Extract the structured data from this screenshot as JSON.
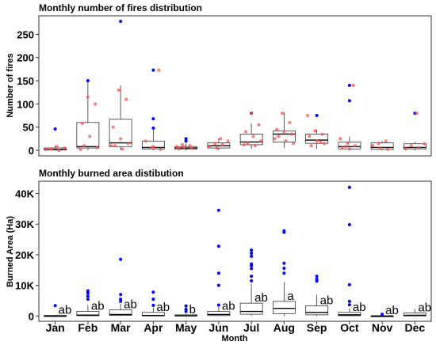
{
  "colors": {
    "box": "#333333",
    "frame": "#333333",
    "outlier": "#0000ff",
    "jitter": "#ff4d4d",
    "background": "#ffffff"
  },
  "chart_data": [
    {
      "type": "box",
      "title": "Monthly number of fires distribution",
      "ylabel": "Number of fires",
      "xlabel": "",
      "ylim": [
        -12,
        290
      ],
      "yticks": [
        0,
        50,
        100,
        150,
        200,
        250
      ],
      "ytick_labels": [
        "0",
        "50",
        "100",
        "150",
        "200",
        "250"
      ],
      "grid": false,
      "categories": [
        "Jan",
        "Feb",
        "Mar",
        "Apr",
        "May",
        "Jun",
        "Jul",
        "Aug",
        "Sep",
        "Oct",
        "Nov",
        "Dec"
      ],
      "boxes": [
        {
          "min": 0,
          "q1": 1,
          "median": 2,
          "q3": 5,
          "max": 10,
          "outliers": [
            46
          ]
        },
        {
          "min": 0,
          "q1": 5,
          "median": 8,
          "q3": 60,
          "max": 148,
          "outliers": [
            150
          ]
        },
        {
          "min": 0,
          "q1": 8,
          "median": 16,
          "q3": 67,
          "max": 140,
          "outliers": [
            278
          ]
        },
        {
          "min": 0,
          "q1": 3,
          "median": 6,
          "q3": 20,
          "max": 50,
          "outliers": [
            173,
            68,
            48
          ]
        },
        {
          "min": 0,
          "q1": 3,
          "median": 5,
          "q3": 8,
          "max": 15,
          "outliers": [
            25,
            20
          ]
        },
        {
          "min": 0,
          "q1": 5,
          "median": 10,
          "q3": 16,
          "max": 26,
          "outliers": []
        },
        {
          "min": 3,
          "q1": 12,
          "median": 18,
          "q3": 35,
          "max": 58,
          "outliers": [
            80
          ]
        },
        {
          "min": 5,
          "q1": 18,
          "median": 35,
          "q3": 42,
          "max": 82,
          "outliers": []
        },
        {
          "min": 3,
          "q1": 15,
          "median": 22,
          "q3": 35,
          "max": 45,
          "outliers": [
            75
          ]
        },
        {
          "min": 0,
          "q1": 3,
          "median": 8,
          "q3": 18,
          "max": 30,
          "outliers": [
            140,
            107
          ]
        },
        {
          "min": 0,
          "q1": 2,
          "median": 6,
          "q3": 16,
          "max": 20,
          "outliers": []
        },
        {
          "min": 0,
          "q1": 3,
          "median": 6,
          "q3": 14,
          "max": 18,
          "outliers": [
            80
          ]
        }
      ],
      "points": [
        [
          2,
          0,
          3,
          5,
          8,
          3
        ],
        [
          10,
          6,
          30,
          58,
          100,
          115,
          2
        ],
        [
          3,
          10,
          15,
          25,
          50,
          110,
          130,
          10
        ],
        [
          2,
          8,
          20,
          173,
          6
        ],
        [
          3,
          5,
          7,
          8,
          10,
          12
        ],
        [
          5,
          8,
          12,
          15,
          20,
          25
        ],
        [
          10,
          15,
          20,
          30,
          40,
          55,
          80,
          12
        ],
        [
          15,
          20,
          30,
          35,
          40,
          45,
          60,
          80,
          25
        ],
        [
          10,
          15,
          20,
          30,
          35,
          42,
          75,
          18
        ],
        [
          3,
          5,
          10,
          15,
          25,
          140,
          8
        ],
        [
          2,
          5,
          10,
          20,
          15
        ],
        [
          3,
          6,
          10,
          14,
          80
        ]
      ]
    },
    {
      "type": "box",
      "title": "Monthly burned area distibution",
      "ylabel": "Burned Area (Ha)",
      "xlabel": "Month",
      "ylim": [
        -1700,
        44000
      ],
      "yticks": [
        0,
        10000,
        20000,
        30000,
        40000
      ],
      "ytick_labels": [
        "0",
        "10K",
        "20K",
        "30K",
        "40K"
      ],
      "grid": false,
      "categories": [
        "Jan",
        "Feb",
        "Mar",
        "Apr",
        "May",
        "Jun",
        "Jul",
        "Aug",
        "Sep",
        "Oct",
        "Nov",
        "Dec"
      ],
      "boxes": [
        {
          "min": 0,
          "q1": 20,
          "median": 60,
          "q3": 200,
          "max": 400,
          "outliers": [
            3400
          ]
        },
        {
          "min": 0,
          "q1": 100,
          "median": 300,
          "q3": 1500,
          "max": 3500,
          "outliers": [
            8200,
            7500,
            6500,
            5500
          ]
        },
        {
          "min": 0,
          "q1": 200,
          "median": 500,
          "q3": 2000,
          "max": 4000,
          "outliers": [
            18500,
            7000,
            5500,
            4800
          ]
        },
        {
          "min": 0,
          "q1": 50,
          "median": 200,
          "q3": 1200,
          "max": 2800,
          "outliers": [
            7800,
            5500,
            3500
          ]
        },
        {
          "min": 0,
          "q1": 20,
          "median": 100,
          "q3": 400,
          "max": 800,
          "outliers": [
            3300,
            2200,
            1500
          ]
        },
        {
          "min": 0,
          "q1": 150,
          "median": 500,
          "q3": 1500,
          "max": 3000,
          "outliers": [
            34500,
            22800,
            14000,
            10000,
            3600
          ]
        },
        {
          "min": 0,
          "q1": 600,
          "median": 1500,
          "q3": 4200,
          "max": 10500,
          "outliers": [
            21500,
            20500,
            19500,
            17000,
            16500,
            15500,
            13000,
            11500
          ]
        },
        {
          "min": 0,
          "q1": 800,
          "median": 2500,
          "q3": 4800,
          "max": 11000,
          "outliers": [
            27800,
            27300,
            17200,
            15600,
            14000
          ]
        },
        {
          "min": 0,
          "q1": 400,
          "median": 1200,
          "q3": 3300,
          "max": 7000,
          "outliers": [
            13000,
            12000,
            11400
          ]
        },
        {
          "min": 0,
          "q1": 100,
          "median": 400,
          "q3": 1200,
          "max": 2500,
          "outliers": [
            42000,
            29800,
            10200,
            4800,
            3700
          ]
        },
        {
          "min": 0,
          "q1": 10,
          "median": 30,
          "q3": 80,
          "max": 150,
          "outliers": [
            600
          ]
        },
        {
          "min": 0,
          "q1": 50,
          "median": 250,
          "q3": 1000,
          "max": 2200,
          "outliers": []
        }
      ],
      "significance": [
        "ab",
        "ab",
        "ab",
        "ab",
        "b",
        "ab",
        "ab",
        "a",
        "ab",
        "ab",
        "ab",
        "ab"
      ]
    }
  ]
}
